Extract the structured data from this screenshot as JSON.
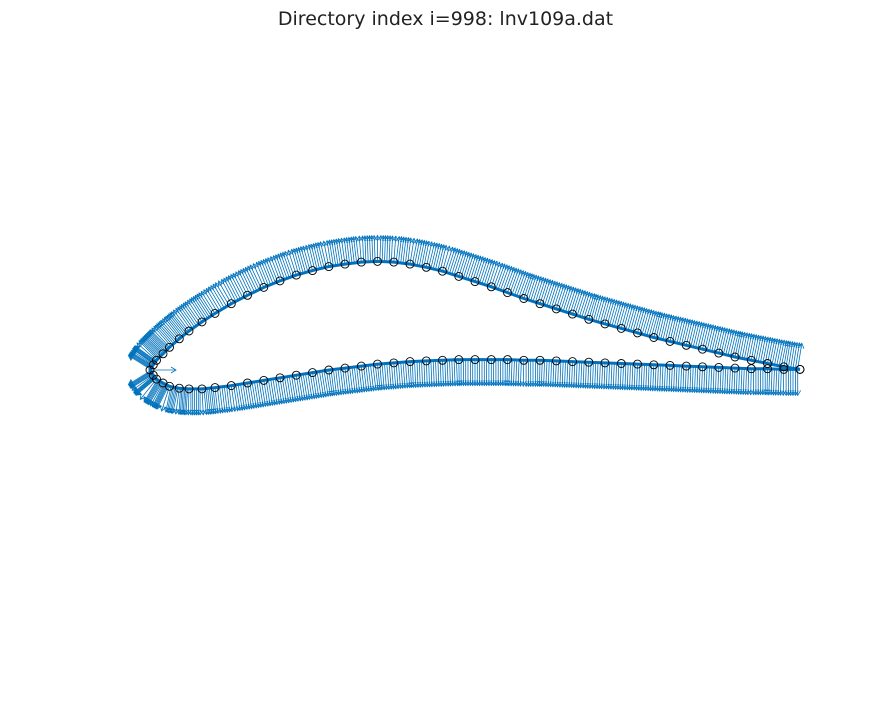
{
  "figure": {
    "title": "Directory index i=998: lnv109a.dat"
  },
  "colors": {
    "normal_vectors": "#0072bd",
    "surface_line": "#0072bd",
    "surface_points": "#000000",
    "background": "#ffffff"
  },
  "chart_data": {
    "type": "scatter",
    "title": "Directory index i=998: lnv109a.dat",
    "axes_visible": false,
    "grid": false,
    "aspect": "equal",
    "xlim": [
      -0.06,
      1.02
    ],
    "ylim": [
      -0.37,
      0.54
    ],
    "upper_surface": {
      "x": [
        1.0,
        0.975,
        0.95,
        0.925,
        0.9,
        0.875,
        0.85,
        0.825,
        0.8,
        0.775,
        0.75,
        0.725,
        0.7,
        0.675,
        0.65,
        0.625,
        0.6,
        0.575,
        0.55,
        0.525,
        0.5,
        0.475,
        0.45,
        0.425,
        0.4,
        0.375,
        0.35,
        0.325,
        0.3,
        0.275,
        0.25,
        0.225,
        0.2,
        0.175,
        0.15,
        0.125,
        0.1,
        0.08,
        0.06,
        0.045,
        0.03,
        0.02,
        0.01,
        0.005,
        0.0
      ],
      "y": [
        0.001,
        0.005,
        0.01,
        0.015,
        0.02,
        0.026,
        0.032,
        0.038,
        0.044,
        0.05,
        0.057,
        0.064,
        0.071,
        0.078,
        0.086,
        0.094,
        0.102,
        0.11,
        0.119,
        0.128,
        0.136,
        0.144,
        0.152,
        0.158,
        0.163,
        0.166,
        0.167,
        0.166,
        0.163,
        0.159,
        0.153,
        0.146,
        0.137,
        0.127,
        0.115,
        0.102,
        0.087,
        0.074,
        0.06,
        0.048,
        0.035,
        0.025,
        0.015,
        0.008,
        0.0
      ]
    },
    "lower_surface": {
      "x": [
        0.0,
        0.005,
        0.01,
        0.02,
        0.03,
        0.045,
        0.06,
        0.08,
        0.1,
        0.125,
        0.15,
        0.175,
        0.2,
        0.225,
        0.25,
        0.275,
        0.3,
        0.325,
        0.35,
        0.375,
        0.4,
        0.425,
        0.45,
        0.475,
        0.5,
        0.525,
        0.55,
        0.575,
        0.6,
        0.625,
        0.65,
        0.675,
        0.7,
        0.725,
        0.75,
        0.775,
        0.8,
        0.825,
        0.85,
        0.875,
        0.9,
        0.925,
        0.95,
        0.975,
        1.0
      ],
      "y": [
        0.0,
        -0.008,
        -0.014,
        -0.02,
        -0.025,
        -0.028,
        -0.029,
        -0.029,
        -0.027,
        -0.024,
        -0.02,
        -0.016,
        -0.012,
        -0.008,
        -0.004,
        0.0,
        0.003,
        0.006,
        0.009,
        0.011,
        0.013,
        0.014,
        0.015,
        0.016,
        0.016,
        0.016,
        0.016,
        0.015,
        0.015,
        0.014,
        0.013,
        0.012,
        0.011,
        0.01,
        0.009,
        0.008,
        0.007,
        0.006,
        0.005,
        0.004,
        0.003,
        0.002,
        0.002,
        0.001,
        0.001
      ]
    }
  }
}
